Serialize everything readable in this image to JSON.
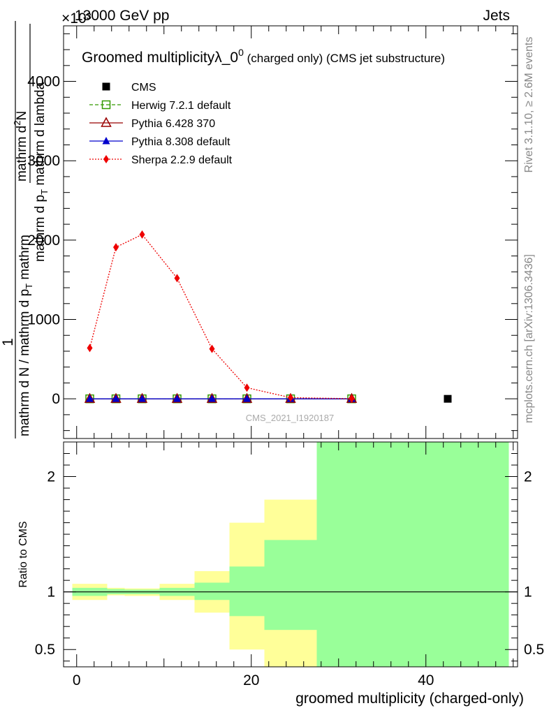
{
  "header": {
    "left": "13000 GeV pp",
    "right": "Jets",
    "exponent": "×10³"
  },
  "side_labels": {
    "rivet": "Rivet 3.1.10, ≥ 2.6M events",
    "mcplots": "mcplots.cern.ch [arXiv:1306.3436]"
  },
  "chart_data": [
    {
      "type": "line",
      "title": "Groomed multiplicityλ_0⁰ (charged only) (CMS jet substructure)",
      "title_main": "Groomed multiplicityλ_0",
      "title_sup": "0",
      "title_tail": " (charged only) (CMS jet substructure)",
      "ylabel_numerator_top": "mathrm d",
      "ylabel_numerator_sup": "2",
      "ylabel_numerator_bottom": "N",
      "ylabel_denominator": "mathrm d p",
      "ylabel_denominator_sub": "T",
      "ylabel_denominator_tail": " mathrm d lambda",
      "ylabel_prefactor": "1",
      "ylabel_prefactor_den": "mathrm d N / mathrm d p",
      "ylabel_prefactor_den_sub": "T",
      "ylabel_prefactor_den_tail": " mathrm",
      "watermark": "CMS_2021_I1920187",
      "xlim": [
        -1.5,
        50.5
      ],
      "ylim": [
        -500,
        4700
      ],
      "y_scale_factor": 1000,
      "yticks": [
        0,
        1000,
        2000,
        3000,
        4000
      ],
      "ytick_labels": [
        "0",
        "1000",
        "2000",
        "3000",
        "4000"
      ],
      "series": [
        {
          "name": "CMS",
          "color": "#000000",
          "marker": "square-filled",
          "line": "none",
          "x": [
            42.5
          ],
          "y": [
            0
          ]
        },
        {
          "name": "Herwig 7.2.1 default",
          "color": "#339900",
          "marker": "square-open",
          "line": "dashed",
          "x": [
            1.5,
            4.5,
            7.5,
            11.5,
            15.5,
            19.5,
            24.5,
            31.5
          ],
          "y": [
            0,
            0,
            0,
            0,
            0,
            0,
            0,
            0
          ]
        },
        {
          "name": "Pythia 6.428 370",
          "color": "#990000",
          "marker": "triangle-open",
          "line": "solid",
          "x": [
            1.5,
            4.5,
            7.5,
            11.5,
            15.5,
            19.5,
            24.5,
            31.5
          ],
          "y": [
            0,
            0,
            0,
            0,
            0,
            0,
            0,
            0
          ]
        },
        {
          "name": "Pythia 8.308 default",
          "color": "#0000cc",
          "marker": "triangle-filled",
          "line": "solid",
          "x": [
            1.5,
            4.5,
            7.5,
            11.5,
            15.5,
            19.5,
            24.5,
            31.5
          ],
          "y": [
            0,
            0,
            0,
            0,
            0,
            0,
            0,
            0
          ]
        },
        {
          "name": "Sherpa 2.2.9 default",
          "color": "#ee0000",
          "marker": "diamond-filled",
          "line": "dotted",
          "x": [
            1.5,
            4.5,
            7.5,
            11.5,
            15.5,
            19.5,
            24.5,
            31.5
          ],
          "y": [
            640,
            1910,
            2070,
            1520,
            630,
            140,
            15,
            2
          ]
        }
      ]
    },
    {
      "type": "area",
      "ylabel": "Ratio to CMS",
      "xlabel": "groomed multiplicity (charged-only)",
      "xlim": [
        -1.5,
        50.5
      ],
      "ylim": [
        0.35,
        2.3
      ],
      "yticks": [
        0.5,
        1,
        2
      ],
      "ytick_labels": [
        "0.5",
        "1",
        "2"
      ],
      "xticks": [
        0,
        20,
        40
      ],
      "xtick_labels": [
        "0",
        "20",
        "40"
      ],
      "reference_line": 1,
      "bands": [
        {
          "x0": -0.5,
          "x1": 3.5,
          "yellow": [
            0.93,
            1.07
          ],
          "green": [
            0.965,
            1.035
          ]
        },
        {
          "x0": 3.5,
          "x1": 5.5,
          "yellow": [
            0.97,
            1.035
          ],
          "green": [
            0.98,
            1.025
          ]
        },
        {
          "x0": 5.5,
          "x1": 9.5,
          "yellow": [
            0.965,
            1.03
          ],
          "green": [
            0.98,
            1.02
          ]
        },
        {
          "x0": 9.5,
          "x1": 13.5,
          "yellow": [
            0.93,
            1.07
          ],
          "green": [
            0.965,
            1.035
          ]
        },
        {
          "x0": 13.5,
          "x1": 17.5,
          "yellow": [
            0.82,
            1.18
          ],
          "green": [
            0.93,
            1.08
          ]
        },
        {
          "x0": 17.5,
          "x1": 21.5,
          "yellow": [
            0.5,
            1.6
          ],
          "green": [
            0.79,
            1.22
          ]
        },
        {
          "x0": 21.5,
          "x1": 27.5,
          "yellow": [
            0.2,
            1.8
          ],
          "green": [
            0.67,
            1.45
          ]
        },
        {
          "x0": 27.5,
          "x1": 49.5,
          "yellow": [
            0.2,
            2.5
          ],
          "green": [
            0.2,
            2.5
          ]
        }
      ],
      "band_colors": {
        "yellow": "#ffff99",
        "green": "#99ff99"
      }
    }
  ]
}
